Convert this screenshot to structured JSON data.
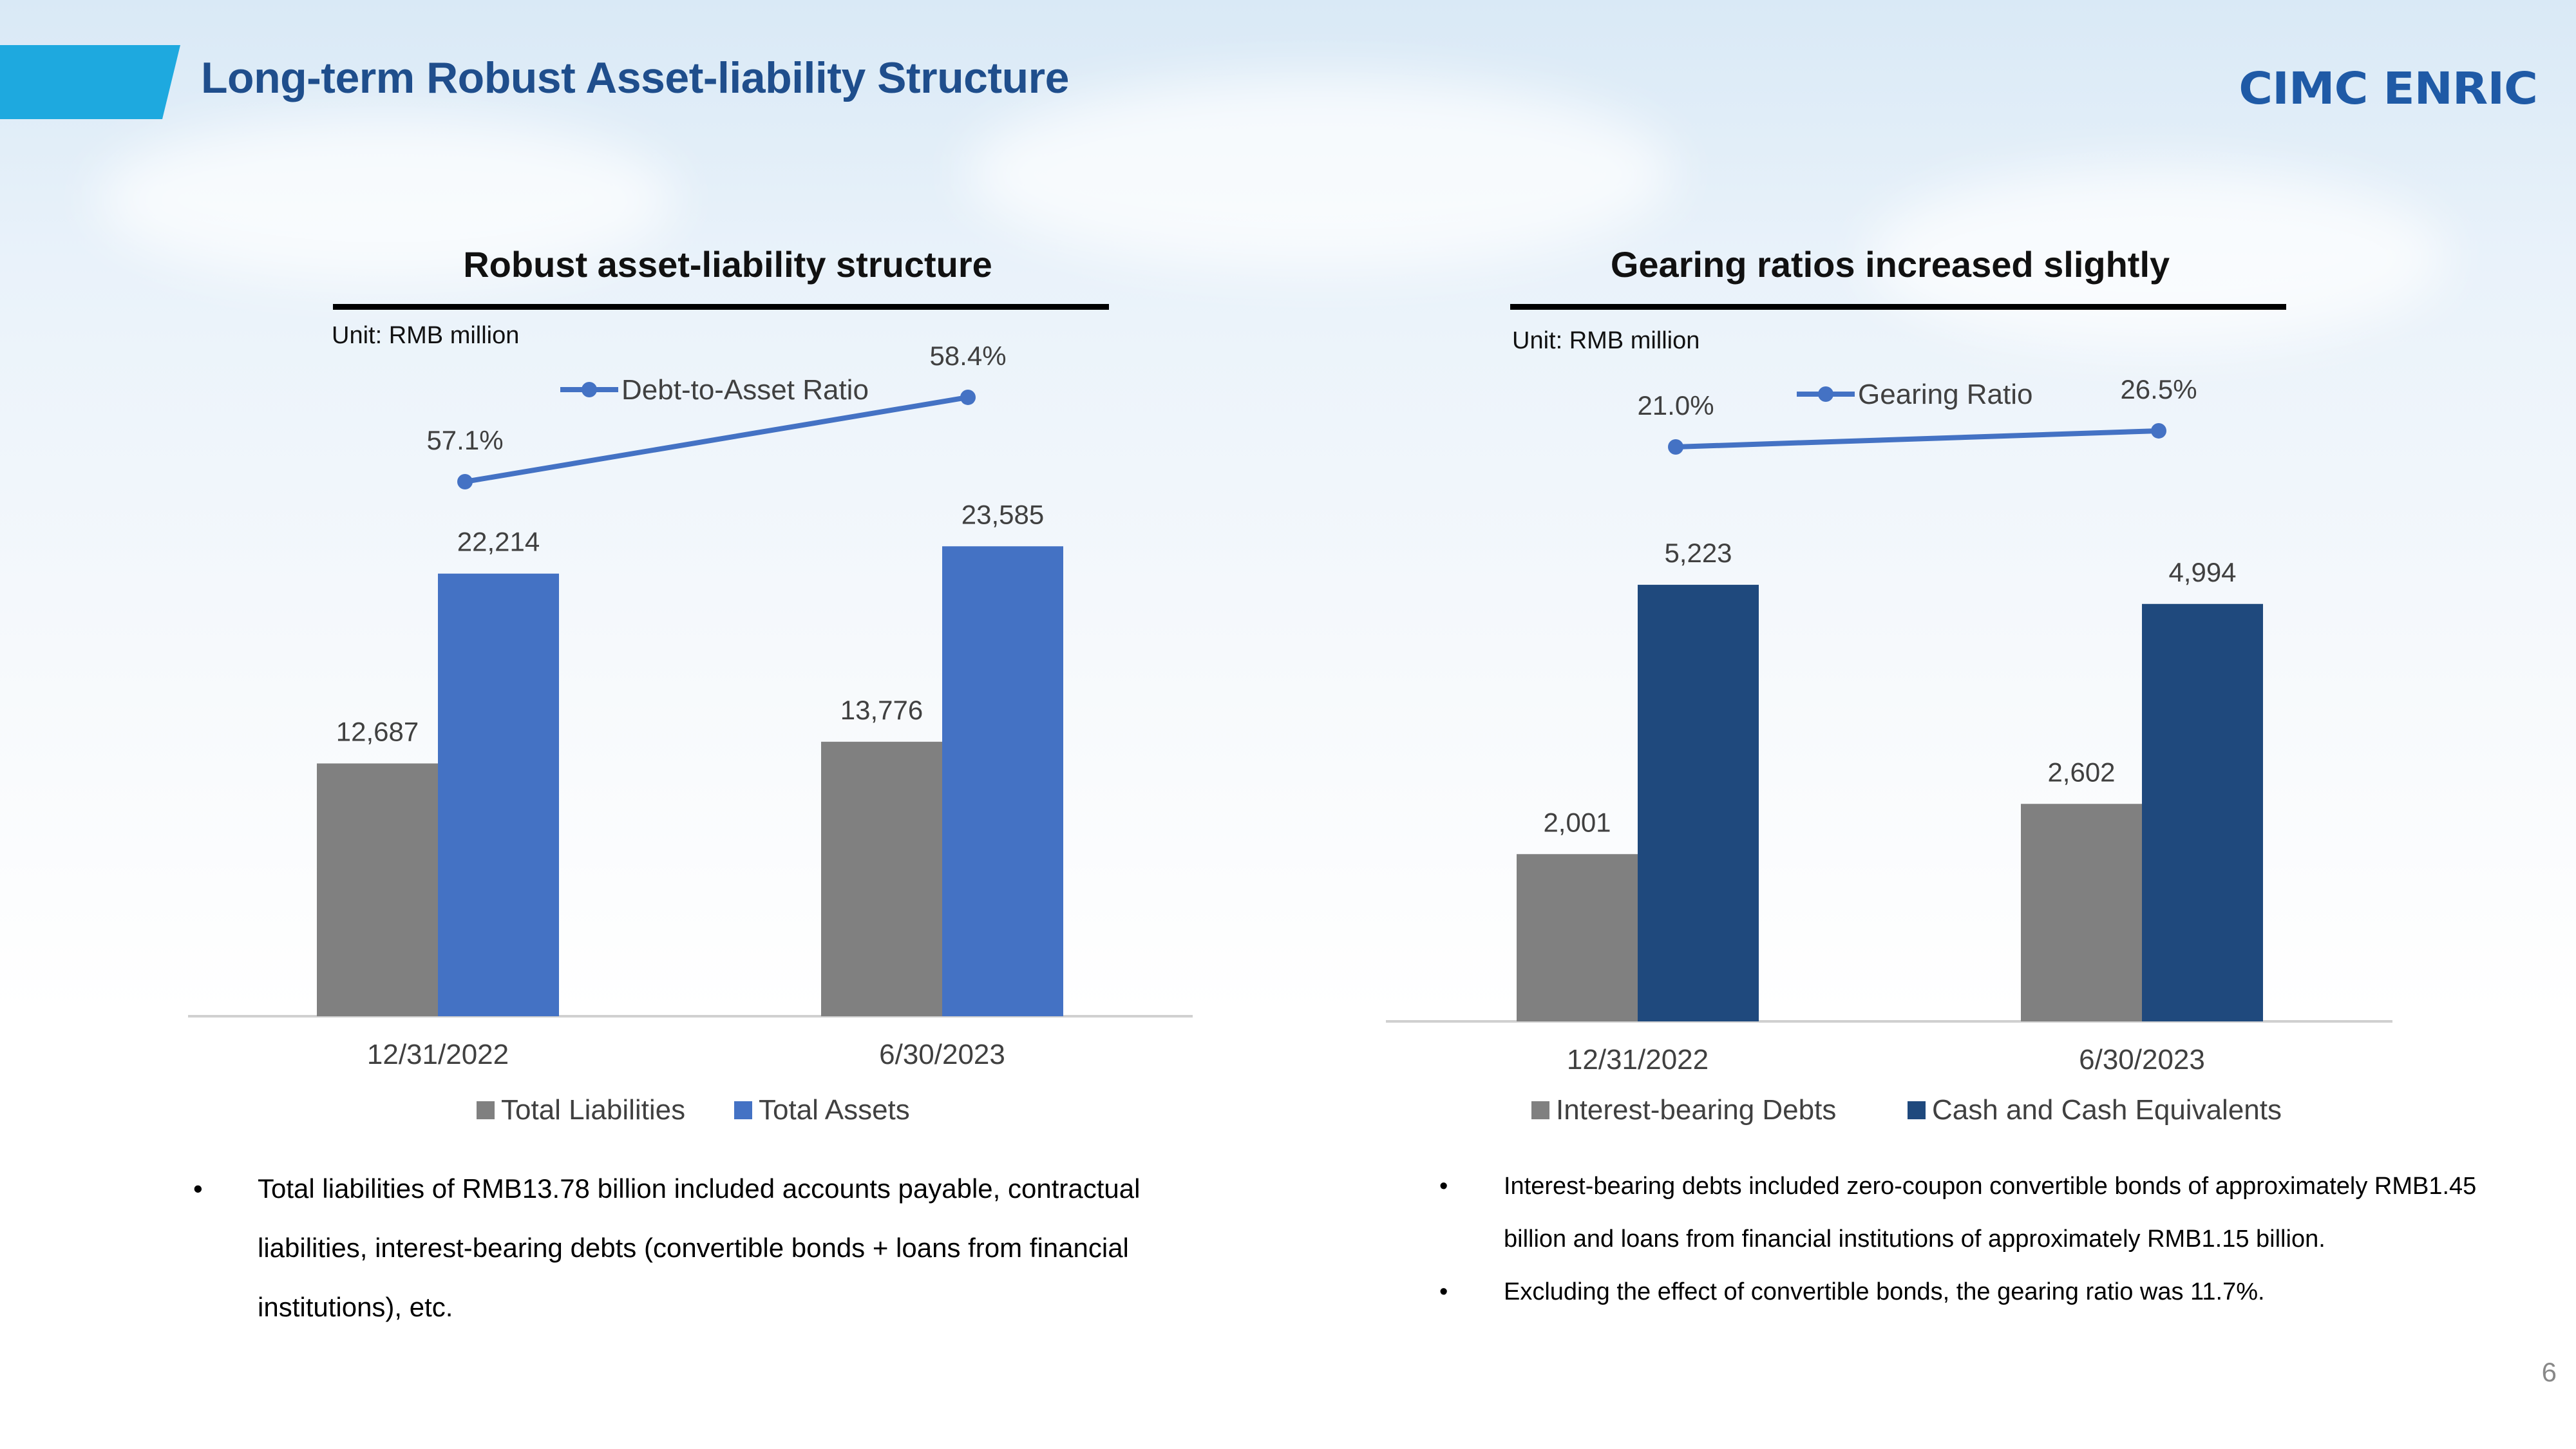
{
  "slide": {
    "title": "Long-term Robust Asset-liability Structure",
    "logo_text": "CIMC ENRIC",
    "page_number": "6",
    "colors": {
      "accent": "#1ea9df",
      "title": "#1f4e8c",
      "logo": "#1f5aa6"
    }
  },
  "panels": {
    "left": {
      "title": "Robust asset-liability structure",
      "unit": "Unit: RMB million",
      "bullets": [
        "Total liabilities of RMB13.78 billion included accounts payable, contractual liabilities, interest-bearing debts (convertible bonds + loans from financial institutions), etc."
      ]
    },
    "right": {
      "title": "Gearing ratios increased slightly",
      "unit": "Unit: RMB million",
      "bullets": [
        "Interest-bearing debts included zero-coupon convertible bonds of approximately RMB1.45 billion and loans from financial institutions of approximately RMB1.15 billion.",
        "Excluding the effect of convertible bonds, the gearing ratio was 11.7%."
      ]
    }
  },
  "chart_data": [
    {
      "type": "bar",
      "categories": [
        "12/31/2022",
        "6/30/2023"
      ],
      "series": [
        {
          "name": "Total Liabilities",
          "values": [
            12687,
            13776
          ],
          "labels": [
            "12,687",
            "13,776"
          ],
          "color": "#808080"
        },
        {
          "name": "Total Assets",
          "values": [
            22214,
            23585
          ],
          "labels": [
            "22,214",
            "23,585"
          ],
          "color": "#4472c4"
        }
      ],
      "line_series": {
        "name": "Debt-to-Asset Ratio",
        "values": [
          57.1,
          58.4
        ],
        "labels": [
          "57.1%",
          "58.4%"
        ],
        "color": "#4472c4"
      },
      "legend_placement": "bottom"
    },
    {
      "type": "bar",
      "categories": [
        "12/31/2022",
        "6/30/2023"
      ],
      "series": [
        {
          "name": "Interest-bearing Debts",
          "values": [
            2001,
            2602
          ],
          "labels": [
            "2,001",
            "2,602"
          ],
          "color": "#808080"
        },
        {
          "name": "Cash and Cash Equivalents",
          "values": [
            5223,
            4994
          ],
          "labels": [
            "5,223",
            "4,994"
          ],
          "color": "#1f497d"
        }
      ],
      "line_series": {
        "name": "Gearing Ratio",
        "values": [
          21.0,
          26.5
        ],
        "labels": [
          "21.0%",
          "26.5%"
        ],
        "color": "#4472c4"
      },
      "legend_placement": "bottom"
    }
  ]
}
